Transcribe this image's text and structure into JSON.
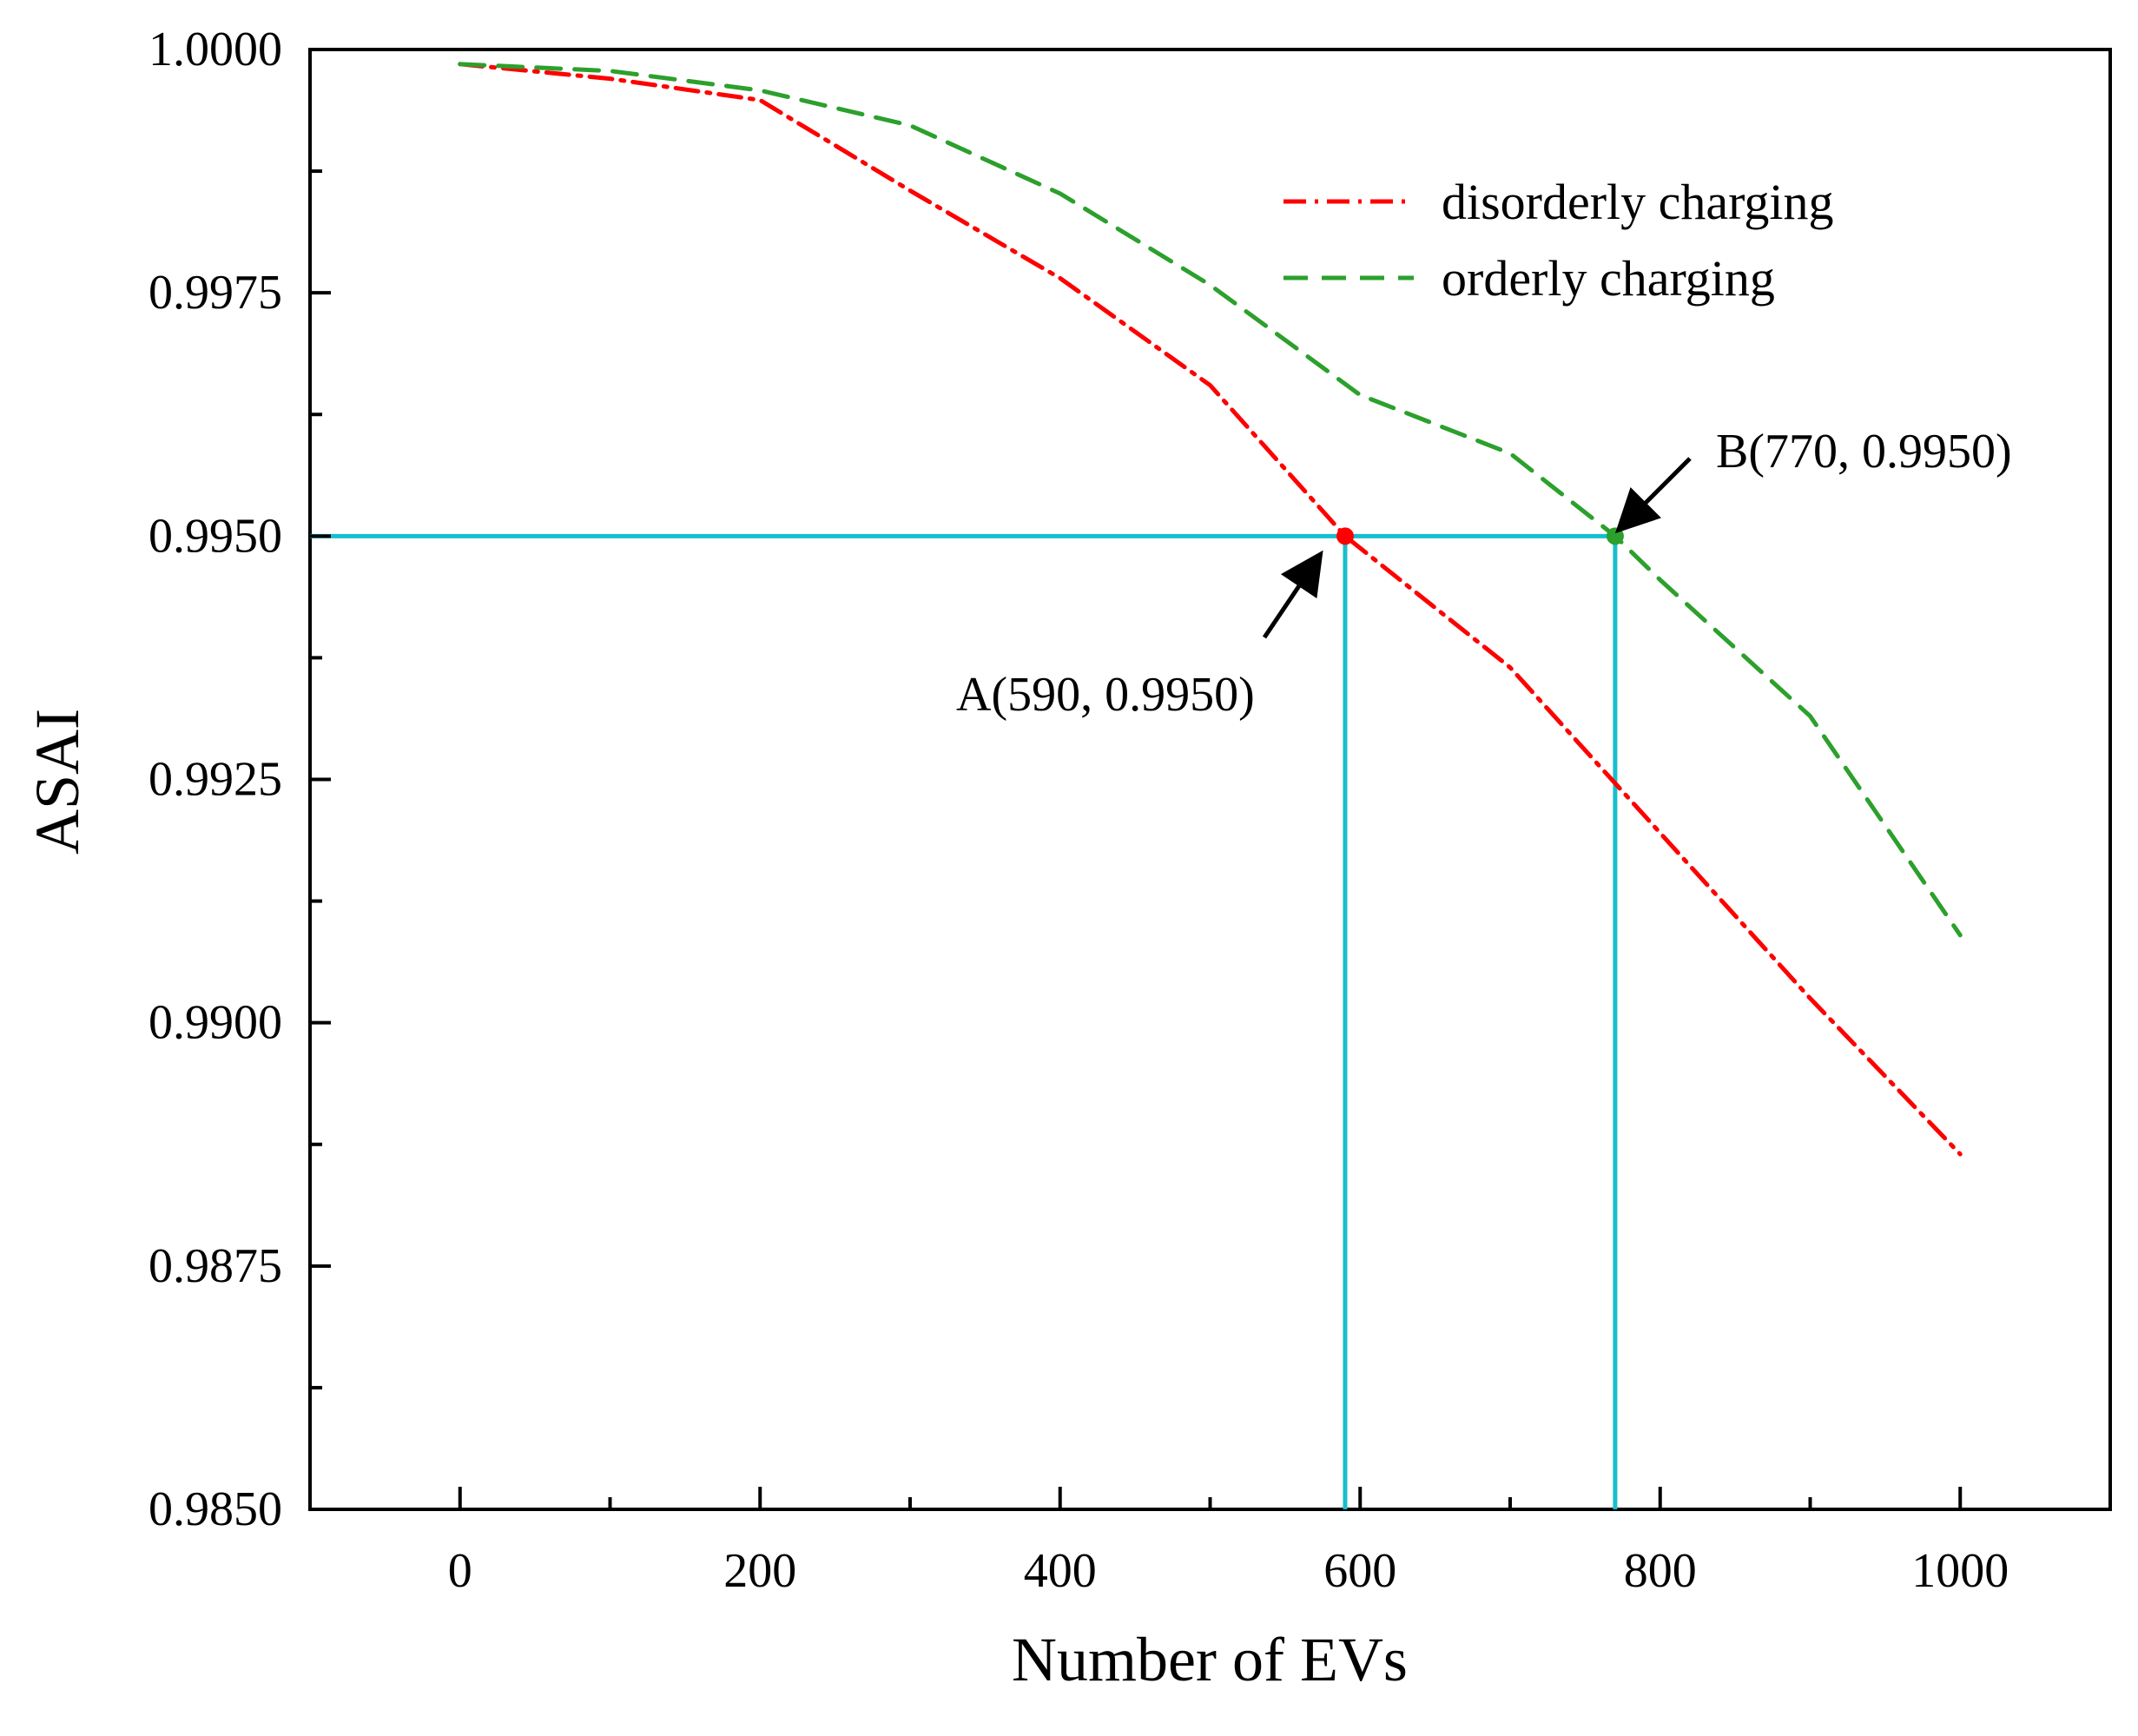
{
  "chart_data": {
    "type": "line",
    "xlabel": "Number of EVs",
    "ylabel": "ASAI",
    "xlim": [
      -100,
      1100
    ],
    "ylim": [
      0.985,
      1.0
    ],
    "xticks": [
      "0",
      "200",
      "400",
      "600",
      "800",
      "1000"
    ],
    "yticks": [
      "0.9850",
      "0.9875",
      "0.9900",
      "0.9925",
      "0.9950",
      "0.9975",
      "1.0000"
    ],
    "grid": false,
    "legend_position": "top-right",
    "series": [
      {
        "name": "disorderly charging",
        "color": "#ff0000",
        "style": "dash-dot",
        "x": [
          0,
          100,
          200,
          300,
          400,
          500,
          590,
          700,
          800,
          900,
          1000
        ],
        "y": [
          0.99985,
          0.9997,
          0.99948,
          0.99855,
          0.99765,
          0.99655,
          0.995,
          0.99365,
          0.99195,
          0.99025,
          0.98865
        ]
      },
      {
        "name": "orderly charging",
        "color": "#2ca02c",
        "style": "dashed",
        "x": [
          0,
          100,
          200,
          300,
          400,
          500,
          600,
          700,
          770,
          800,
          900,
          1000
        ],
        "y": [
          0.99985,
          0.99978,
          0.99958,
          0.99922,
          0.99852,
          0.99758,
          0.99645,
          0.99585,
          0.995,
          0.99455,
          0.99315,
          0.9909
        ]
      }
    ],
    "reference_lines": {
      "color": "#17becf",
      "y": 0.995,
      "x": [
        590,
        770
      ]
    },
    "annotations": [
      {
        "label": "A(590, 0.9950)",
        "x": 590,
        "y": 0.995,
        "color": "#ff0000"
      },
      {
        "label": "B(770, 0.9950)",
        "x": 770,
        "y": 0.995,
        "color": "#2ca02c"
      }
    ]
  }
}
